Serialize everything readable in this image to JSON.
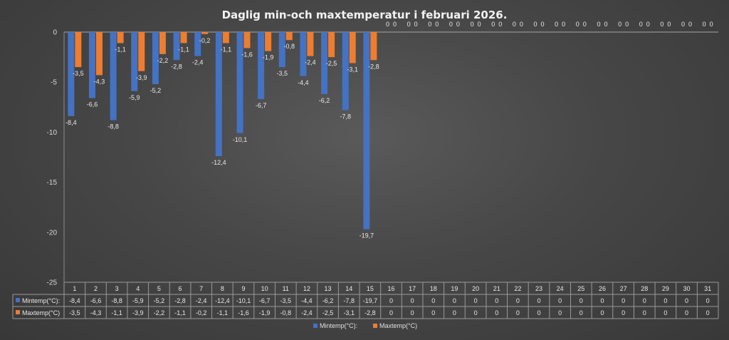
{
  "chart_data": {
    "type": "bar",
    "title": "Daglig min-och maxtemperatur i februari 2026.",
    "categories": [
      "1",
      "2",
      "3",
      "4",
      "5",
      "6",
      "7",
      "8",
      "9",
      "10",
      "11",
      "12",
      "13",
      "14",
      "15",
      "16",
      "17",
      "18",
      "19",
      "20",
      "21",
      "22",
      "23",
      "24",
      "25",
      "26",
      "27",
      "28",
      "29",
      "30",
      "31"
    ],
    "series": [
      {
        "name": "Mintemp(°C):",
        "color": "#4472c4",
        "values": [
          -8.4,
          -6.6,
          -8.8,
          -5.9,
          -5.2,
          -2.8,
          -2.4,
          -12.4,
          -10.1,
          -6.7,
          -3.5,
          -4.4,
          -6.2,
          -7.8,
          -19.7,
          0,
          0,
          0,
          0,
          0,
          0,
          0,
          0,
          0,
          0,
          0,
          0,
          0,
          0,
          0,
          0
        ],
        "labels": [
          "-8,4",
          "-6,6",
          "-8,8",
          "-5,9",
          "-5,2",
          "-2,8",
          "-2,4",
          "-12,4",
          "-10,1",
          "-6,7",
          "-3,5",
          "-4,4",
          "-6,2",
          "-7,8",
          "-19,7",
          "0",
          "0",
          "0",
          "0",
          "0",
          "0",
          "0",
          "0",
          "0",
          "0",
          "0",
          "0",
          "0",
          "0",
          "0",
          "0"
        ]
      },
      {
        "name": "Maxtemp(°C)",
        "color": "#ed7d31",
        "values": [
          -3.5,
          -4.3,
          -1.1,
          -3.9,
          -2.2,
          -1.1,
          -0.2,
          -1.1,
          -1.6,
          -1.9,
          -0.8,
          -2.4,
          -2.5,
          -3.1,
          -2.8,
          0,
          0,
          0,
          0,
          0,
          0,
          0,
          0,
          0,
          0,
          0,
          0,
          0,
          0,
          0,
          0
        ],
        "labels": [
          "-3,5",
          "-4,3",
          "-1,1",
          "-3,9",
          "-2,2",
          "-1,1",
          "-0,2",
          "-1,1",
          "-1,6",
          "-1,9",
          "-0,8",
          "-2,4",
          "-2,5",
          "-3,1",
          "-2,8",
          "0",
          "0",
          "0",
          "0",
          "0",
          "0",
          "0",
          "0",
          "0",
          "0",
          "0",
          "0",
          "0",
          "0",
          "0",
          "0"
        ]
      }
    ],
    "ylim": [
      -25,
      0
    ],
    "yticks": [
      0,
      -5,
      -10,
      -15,
      -20,
      -25
    ],
    "ytick_labels": [
      "0",
      "-5",
      "-10",
      "-15",
      "-20",
      "-25"
    ],
    "grid": false,
    "legend_position": "bottom",
    "data_table": true
  }
}
